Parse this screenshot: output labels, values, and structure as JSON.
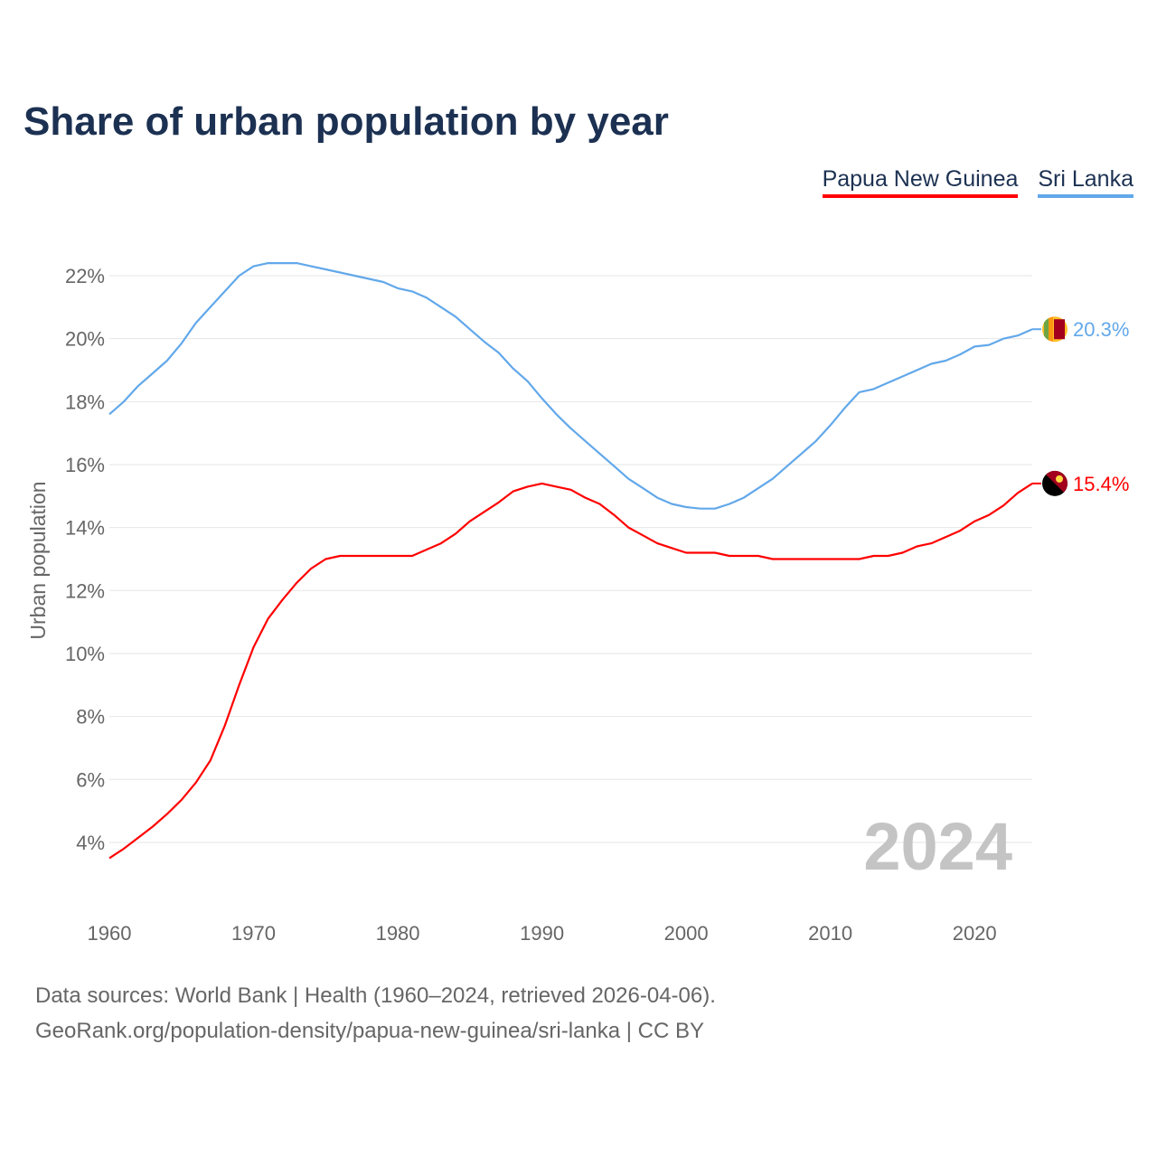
{
  "title": "Share of urban population by year",
  "footer": {
    "line1": "Data sources: World Bank | Health (1960–2024, retrieved 2026-04-06).",
    "line2": "GeoRank.org/population-density/papua-new-guinea/sri-lanka | CC BY"
  },
  "chart_data": {
    "type": "line",
    "title": "Share of urban population by year",
    "xlabel": "",
    "ylabel": "Urban population",
    "year_watermark": "2024",
    "xlim": [
      1960,
      2024
    ],
    "ylim": [
      2.5,
      23
    ],
    "xticks": [
      "1960",
      "1970",
      "1980",
      "1990",
      "2000",
      "2010",
      "2020"
    ],
    "yticks": [
      "4%",
      "6%",
      "8%",
      "10%",
      "12%",
      "14%",
      "16%",
      "18%",
      "20%",
      "22%"
    ],
    "grid": true,
    "legend_position": "top-right",
    "x": [
      1960,
      1961,
      1962,
      1963,
      1964,
      1965,
      1966,
      1967,
      1968,
      1969,
      1970,
      1971,
      1972,
      1973,
      1974,
      1975,
      1976,
      1977,
      1978,
      1979,
      1980,
      1981,
      1982,
      1983,
      1984,
      1985,
      1986,
      1987,
      1988,
      1989,
      1990,
      1991,
      1992,
      1993,
      1994,
      1995,
      1996,
      1997,
      1998,
      1999,
      2000,
      2001,
      2002,
      2003,
      2004,
      2005,
      2006,
      2007,
      2008,
      2009,
      2010,
      2011,
      2012,
      2013,
      2014,
      2015,
      2016,
      2017,
      2018,
      2019,
      2020,
      2021,
      2022,
      2023,
      2024
    ],
    "series": [
      {
        "name": "Papua New Guinea",
        "color": "#ff0000",
        "end_label": "15.4%",
        "flag": "papua-new-guinea",
        "values": [
          3.5,
          3.8,
          4.15,
          4.5,
          4.9,
          5.35,
          5.9,
          6.6,
          7.7,
          9.0,
          10.2,
          11.1,
          11.7,
          12.25,
          12.7,
          13.0,
          13.1,
          13.1,
          13.1,
          13.1,
          13.1,
          13.1,
          13.3,
          13.5,
          13.8,
          14.2,
          14.5,
          14.8,
          15.15,
          15.3,
          15.4,
          15.3,
          15.2,
          14.95,
          14.75,
          14.4,
          14.0,
          13.75,
          13.5,
          13.35,
          13.2,
          13.2,
          13.2,
          13.1,
          13.1,
          13.1,
          13.0,
          13.0,
          13.0,
          13.0,
          13.0,
          13.0,
          13.0,
          13.1,
          13.1,
          13.2,
          13.4,
          13.5,
          13.7,
          13.9,
          14.2,
          14.4,
          14.7,
          15.1,
          15.4
        ]
      },
      {
        "name": "Sri Lanka",
        "color": "#62a8ea",
        "end_label": "20.3%",
        "flag": "sri-lanka",
        "values": [
          17.6,
          18.0,
          18.5,
          18.9,
          19.3,
          19.85,
          20.5,
          21.0,
          21.5,
          22.0,
          22.3,
          22.4,
          22.4,
          22.4,
          22.3,
          22.2,
          22.1,
          22.0,
          21.9,
          21.8,
          21.6,
          21.5,
          21.3,
          21.0,
          20.7,
          20.3,
          19.9,
          19.55,
          19.05,
          18.65,
          18.1,
          17.6,
          17.15,
          16.75,
          16.35,
          15.95,
          15.55,
          15.25,
          14.95,
          14.75,
          14.65,
          14.6,
          14.6,
          14.75,
          14.95,
          15.25,
          15.55,
          15.95,
          16.35,
          16.75,
          17.25,
          17.8,
          18.3,
          18.4,
          18.6,
          18.8,
          19.0,
          19.2,
          19.3,
          19.5,
          19.75,
          19.8,
          20.0,
          20.1,
          20.3
        ]
      }
    ]
  }
}
